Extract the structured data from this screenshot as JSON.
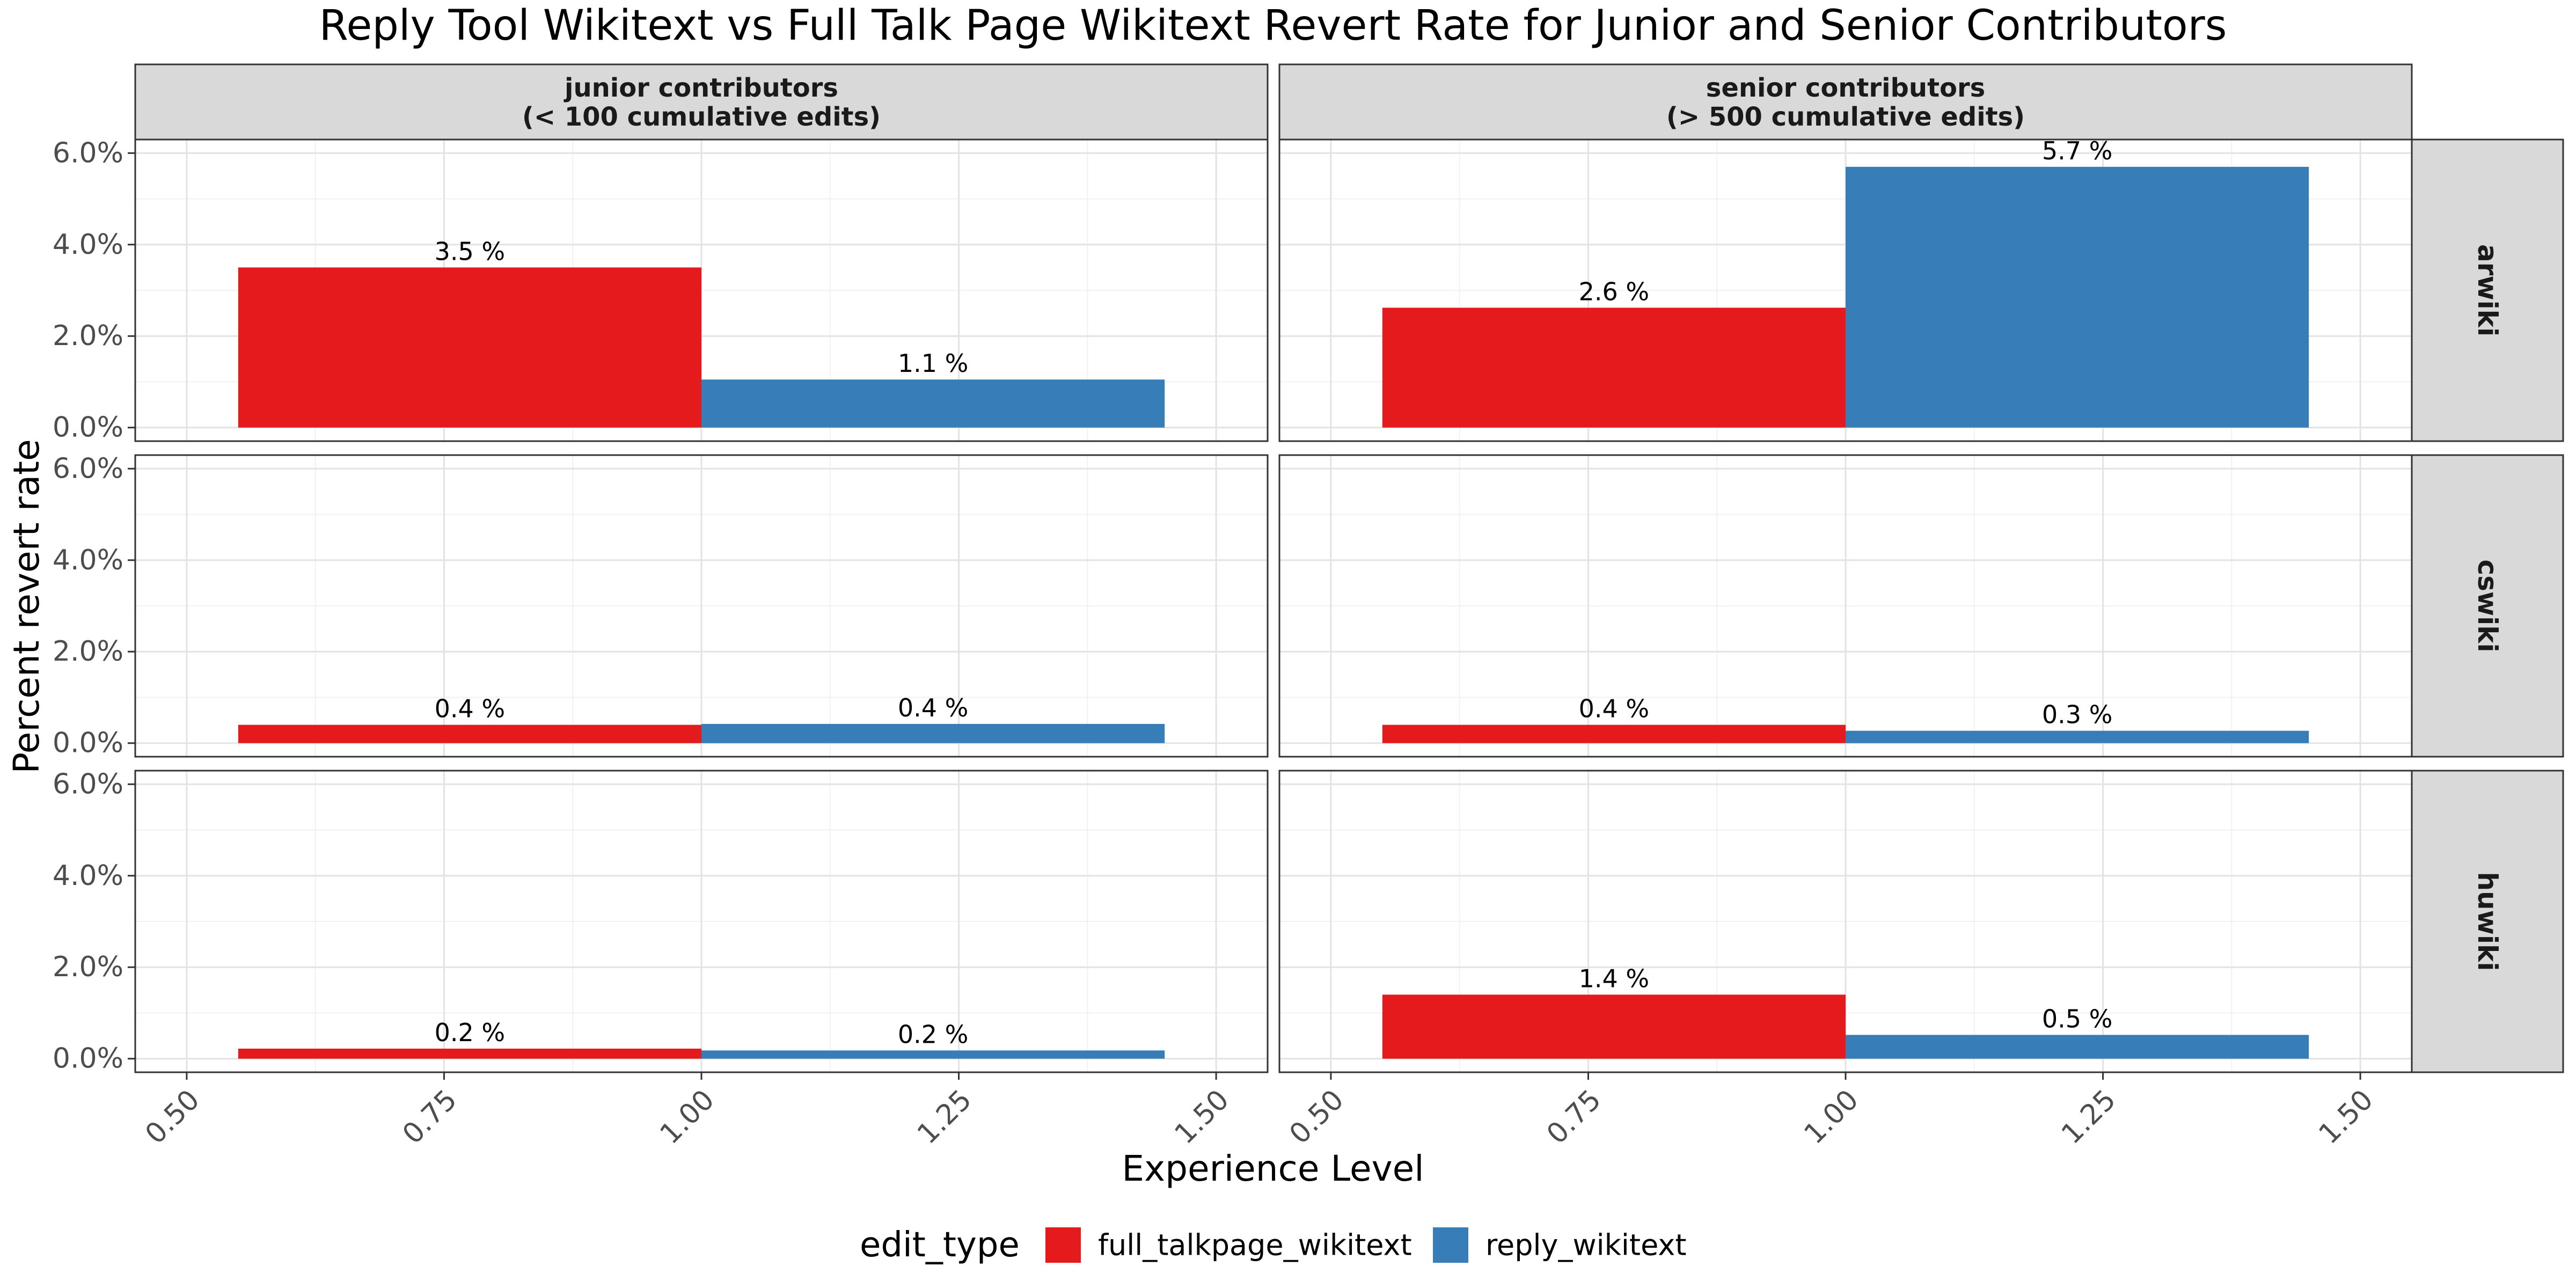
{
  "chart_data": {
    "type": "bar",
    "title": "Reply Tool Wikitext vs Full Talk Page Wikitext Revert Rate for Junior and Senior Contributors",
    "xlabel": "Experience Level",
    "ylabel": "Percent revert rate",
    "xlim": [
      0.45,
      1.55
    ],
    "x_ticks": [
      "0.50",
      "0.75",
      "1.00",
      "1.25",
      "1.50"
    ],
    "ylim": [
      0,
      6
    ],
    "y_ticks": [
      "0.0%",
      "2.0%",
      "4.0%",
      "6.0%"
    ],
    "grid": true,
    "legend": {
      "title": "edit_type",
      "position": "bottom",
      "entries": [
        {
          "name": "full_talkpage_wikitext",
          "color": "#E41A1C"
        },
        {
          "name": "reply_wikitext",
          "color": "#377EB8"
        }
      ]
    },
    "column_facets": [
      {
        "line1": "junior contributors",
        "line2": "(< 100 cumulative edits)"
      },
      {
        "line1": "senior contributors",
        "line2": "(> 500 cumulative edits)"
      }
    ],
    "row_facets": [
      "arwiki",
      "cswiki",
      "huwiki"
    ],
    "panels": [
      {
        "row": "arwiki",
        "col": 0,
        "series": [
          {
            "name": "full_talkpage_wikitext",
            "x_range": [
              0.55,
              1.0
            ],
            "value": 3.5,
            "label": "3.5 %"
          },
          {
            "name": "reply_wikitext",
            "x_range": [
              1.0,
              1.45
            ],
            "value": 1.05,
            "label": "1.1 %"
          }
        ]
      },
      {
        "row": "arwiki",
        "col": 1,
        "series": [
          {
            "name": "full_talkpage_wikitext",
            "x_range": [
              0.55,
              1.0
            ],
            "value": 2.62,
            "label": "2.6 %"
          },
          {
            "name": "reply_wikitext",
            "x_range": [
              1.0,
              1.45
            ],
            "value": 5.7,
            "label": "5.7 %"
          }
        ]
      },
      {
        "row": "cswiki",
        "col": 0,
        "series": [
          {
            "name": "full_talkpage_wikitext",
            "x_range": [
              0.55,
              1.0
            ],
            "value": 0.4,
            "label": "0.4 %"
          },
          {
            "name": "reply_wikitext",
            "x_range": [
              1.0,
              1.45
            ],
            "value": 0.42,
            "label": "0.4 %"
          }
        ]
      },
      {
        "row": "cswiki",
        "col": 1,
        "series": [
          {
            "name": "full_talkpage_wikitext",
            "x_range": [
              0.55,
              1.0
            ],
            "value": 0.4,
            "label": "0.4 %"
          },
          {
            "name": "reply_wikitext",
            "x_range": [
              1.0,
              1.45
            ],
            "value": 0.27,
            "label": "0.3 %"
          }
        ]
      },
      {
        "row": "huwiki",
        "col": 0,
        "series": [
          {
            "name": "full_talkpage_wikitext",
            "x_range": [
              0.55,
              1.0
            ],
            "value": 0.22,
            "label": "0.2 %"
          },
          {
            "name": "reply_wikitext",
            "x_range": [
              1.0,
              1.45
            ],
            "value": 0.18,
            "label": "0.2 %"
          }
        ]
      },
      {
        "row": "huwiki",
        "col": 1,
        "series": [
          {
            "name": "full_talkpage_wikitext",
            "x_range": [
              0.55,
              1.0
            ],
            "value": 1.4,
            "label": "1.4 %"
          },
          {
            "name": "reply_wikitext",
            "x_range": [
              1.0,
              1.45
            ],
            "value": 0.52,
            "label": "0.5 %"
          }
        ]
      }
    ]
  }
}
